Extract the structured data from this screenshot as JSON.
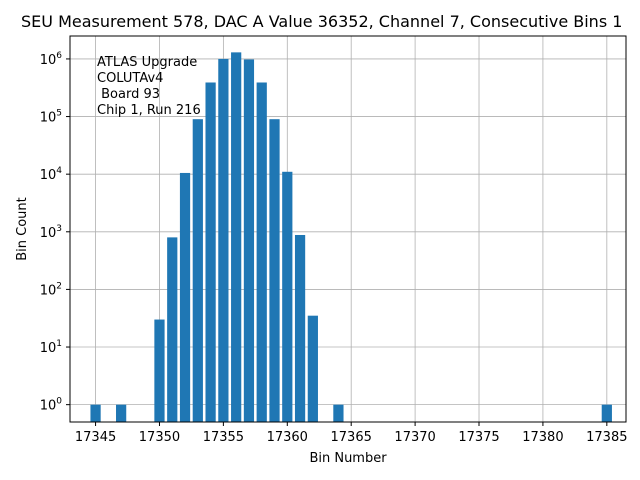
{
  "chart_data": {
    "type": "bar",
    "title": "SEU Measurement 578, DAC A Value 36352, Channel 7, Consecutive Bins 1",
    "xlabel": "Bin Number",
    "ylabel": "Bin Count",
    "yscale": "log",
    "grid": true,
    "bar_color": "#1f77b4",
    "xlim": [
      17343,
      17386.5
    ],
    "ylim": [
      0.5,
      2500000
    ],
    "x_ticks": [
      17345,
      17350,
      17355,
      17360,
      17365,
      17370,
      17375,
      17380,
      17385
    ],
    "y_ticks": [
      {
        "value": 1,
        "base": "10",
        "exp": "0"
      },
      {
        "value": 10,
        "base": "10",
        "exp": "1"
      },
      {
        "value": 100,
        "base": "10",
        "exp": "2"
      },
      {
        "value": 1000,
        "base": "10",
        "exp": "3"
      },
      {
        "value": 10000,
        "base": "10",
        "exp": "4"
      },
      {
        "value": 100000,
        "base": "10",
        "exp": "5"
      },
      {
        "value": 1000000,
        "base": "10",
        "exp": "6"
      }
    ],
    "bars": [
      {
        "x": 17345,
        "y": 1
      },
      {
        "x": 17347,
        "y": 1
      },
      {
        "x": 17350,
        "y": 30
      },
      {
        "x": 17351,
        "y": 800
      },
      {
        "x": 17352,
        "y": 10500
      },
      {
        "x": 17353,
        "y": 90000
      },
      {
        "x": 17354,
        "y": 390000
      },
      {
        "x": 17355,
        "y": 1000000
      },
      {
        "x": 17356,
        "y": 1300000
      },
      {
        "x": 17357,
        "y": 980000
      },
      {
        "x": 17358,
        "y": 390000
      },
      {
        "x": 17359,
        "y": 90000
      },
      {
        "x": 17360,
        "y": 11000
      },
      {
        "x": 17361,
        "y": 880
      },
      {
        "x": 17362,
        "y": 35
      },
      {
        "x": 17364,
        "y": 1
      },
      {
        "x": 17385,
        "y": 1
      }
    ],
    "annotation": [
      "ATLAS Upgrade",
      "COLUTAv4",
      " Board 93",
      "Chip 1, Run 216"
    ]
  }
}
